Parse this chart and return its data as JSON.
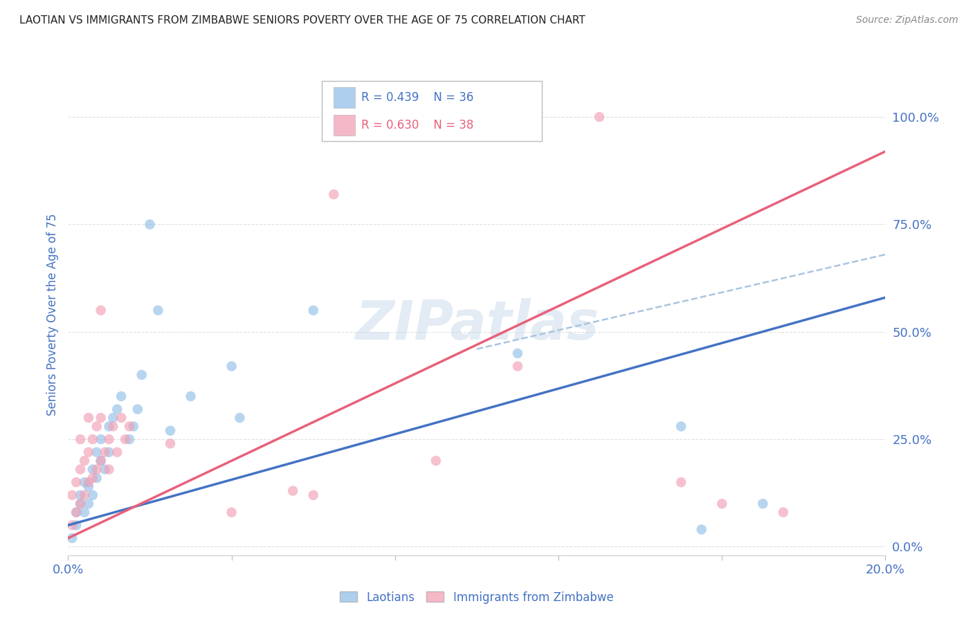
{
  "title": "LAOTIAN VS IMMIGRANTS FROM ZIMBABWE SENIORS POVERTY OVER THE AGE OF 75 CORRELATION CHART",
  "source": "Source: ZipAtlas.com",
  "ylabel_label": "Seniors Poverty Over the Age of 75",
  "right_yticks": [
    0.0,
    0.25,
    0.5,
    0.75,
    1.0
  ],
  "right_ytick_labels": [
    "0.0%",
    "25.0%",
    "50.0%",
    "75.0%",
    "100.0%"
  ],
  "xmin": 0.0,
  "xmax": 0.2,
  "ymin": -0.02,
  "ymax": 1.1,
  "legend_blue_r": "R = 0.439",
  "legend_blue_n": "N = 36",
  "legend_pink_r": "R = 0.630",
  "legend_pink_n": "N = 38",
  "blue_color": "#92bfe8",
  "pink_color": "#f2a0b5",
  "blue_line_color": "#4472c4",
  "pink_line_color": "#e8607a",
  "dashed_line_color": "#aac4e0",
  "text_color": "#4472c4",
  "watermark": "ZIPatlas",
  "blue_scatter_x": [
    0.001,
    0.002,
    0.002,
    0.003,
    0.003,
    0.004,
    0.004,
    0.005,
    0.005,
    0.006,
    0.006,
    0.007,
    0.007,
    0.008,
    0.008,
    0.009,
    0.01,
    0.01,
    0.011,
    0.012,
    0.013,
    0.015,
    0.016,
    0.017,
    0.018,
    0.02,
    0.022,
    0.025,
    0.03,
    0.04,
    0.042,
    0.06,
    0.11,
    0.15,
    0.155,
    0.17
  ],
  "blue_scatter_y": [
    0.02,
    0.05,
    0.08,
    0.1,
    0.12,
    0.08,
    0.15,
    0.1,
    0.14,
    0.12,
    0.18,
    0.16,
    0.22,
    0.2,
    0.25,
    0.18,
    0.22,
    0.28,
    0.3,
    0.32,
    0.35,
    0.25,
    0.28,
    0.32,
    0.4,
    0.75,
    0.55,
    0.27,
    0.35,
    0.42,
    0.3,
    0.55,
    0.45,
    0.28,
    0.04,
    0.1
  ],
  "pink_scatter_x": [
    0.001,
    0.001,
    0.002,
    0.002,
    0.003,
    0.003,
    0.004,
    0.004,
    0.005,
    0.005,
    0.006,
    0.006,
    0.007,
    0.007,
    0.008,
    0.008,
    0.009,
    0.01,
    0.01,
    0.011,
    0.012,
    0.013,
    0.014,
    0.015,
    0.003,
    0.005,
    0.008,
    0.025,
    0.04,
    0.055,
    0.06,
    0.065,
    0.09,
    0.11,
    0.13,
    0.15,
    0.16,
    0.175
  ],
  "pink_scatter_y": [
    0.05,
    0.12,
    0.08,
    0.15,
    0.1,
    0.18,
    0.12,
    0.2,
    0.15,
    0.22,
    0.16,
    0.25,
    0.18,
    0.28,
    0.2,
    0.3,
    0.22,
    0.18,
    0.25,
    0.28,
    0.22,
    0.3,
    0.25,
    0.28,
    0.25,
    0.3,
    0.55,
    0.24,
    0.08,
    0.13,
    0.12,
    0.82,
    0.2,
    0.42,
    1.0,
    0.15,
    0.1,
    0.08
  ],
  "blue_line_x0": 0.0,
  "blue_line_y0": 0.05,
  "blue_line_x1": 0.2,
  "blue_line_y1": 0.58,
  "pink_line_x0": 0.0,
  "pink_line_y0": 0.02,
  "pink_line_x1": 0.2,
  "pink_line_y1": 0.92,
  "dash_line_x0": 0.1,
  "dash_line_y0": 0.46,
  "dash_line_x1": 0.2,
  "dash_line_y1": 0.68,
  "grid_color": "#e0e0e0",
  "bg_color": "#ffffff"
}
